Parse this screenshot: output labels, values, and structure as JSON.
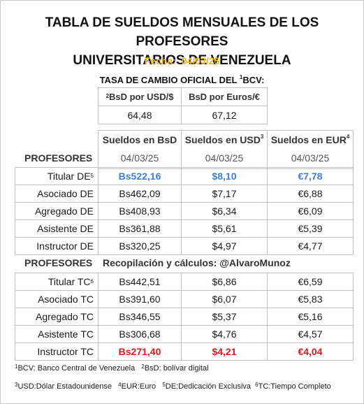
{
  "title": {
    "line1": "TABLA DE SUELDOS MENSUALES DE LOS PROFESORES",
    "line2": "UNIVERSITARIOS DE VENEZUELA"
  },
  "fecha": {
    "label": "Fecha:",
    "value": "04/03/25"
  },
  "tasa": {
    "title": "TASA DE CAMBIO OFICIAL DEL ",
    "title_sup": "1",
    "title_end": "BCV:",
    "usd_header_sup": "2",
    "usd_header": "BsD por USD/$",
    "eur_header": "BsD por Euros/€",
    "usd_value": "64,48",
    "eur_value": "67,12"
  },
  "columns": {
    "bs": "Sueldos en BsD",
    "usd": "Sueldos en USD",
    "usd_sup": "3",
    "eur": "Sueldos en EUR",
    "eur_sup": "4",
    "date": "04/03/25"
  },
  "section1": {
    "label": "PROFESORES",
    "rows": [
      {
        "name": "Titular DE",
        "sup": "5",
        "bs": "Bs522,16",
        "usd": "$8,10",
        "eur": "€7,78"
      },
      {
        "name": "Asociado DE",
        "sup": "",
        "bs": "Bs462,09",
        "usd": "$7,17",
        "eur": "€6,88"
      },
      {
        "name": "Agregado DE",
        "sup": "",
        "bs": "Bs408,93",
        "usd": "$6,34",
        "eur": "€6,09"
      },
      {
        "name": "Asistente DE",
        "sup": "",
        "bs": "Bs361,88",
        "usd": "$5,61",
        "eur": "€5,39"
      },
      {
        "name": "Instructor DE",
        "sup": "",
        "bs": "Bs320,25",
        "usd": "$4,97",
        "eur": "€4,77"
      }
    ]
  },
  "section2": {
    "label": "PROFESORES",
    "credit": "Recopilación y cálculos: @AlvaroMunoz",
    "rows": [
      {
        "name": "Titular TC",
        "sup": "6",
        "bs": "Bs442,51",
        "usd": "$6,86",
        "eur": "€6,59"
      },
      {
        "name": "Asociado TC",
        "sup": "",
        "bs": "Bs391,60",
        "usd": "$6,07",
        "eur": "€5,83"
      },
      {
        "name": "Agregado TC",
        "sup": "",
        "bs": "Bs346,55",
        "usd": "$5,37",
        "eur": "€5,16"
      },
      {
        "name": "Asistente TC",
        "sup": "",
        "bs": "Bs306,68",
        "usd": "$4,76",
        "eur": "€4,57"
      },
      {
        "name": "Instructor TC",
        "sup": "",
        "bs": "Bs271,40",
        "usd": "$4,21",
        "eur": "€4,04"
      }
    ]
  },
  "footnotes": {
    "f1_sup": "1",
    "f1": "BCV: Banco Central de Venezuela",
    "f2_sup": "2",
    "f2": "BsD: bolívar digital",
    "f3_sup": "3",
    "f3": "USD:Dólar Estadounidense",
    "f4_sup": "4",
    "f4": "EUR:Euro",
    "f5_sup": "5",
    "f5": "DE:Dedicación Exclusiva",
    "f6_sup": "6",
    "f6": "TC:Tiempo Completo"
  },
  "colors": {
    "highlight_blue": "#3e7fd6",
    "highlight_red": "#e2141c",
    "fecha_gold": "#f0b323"
  }
}
